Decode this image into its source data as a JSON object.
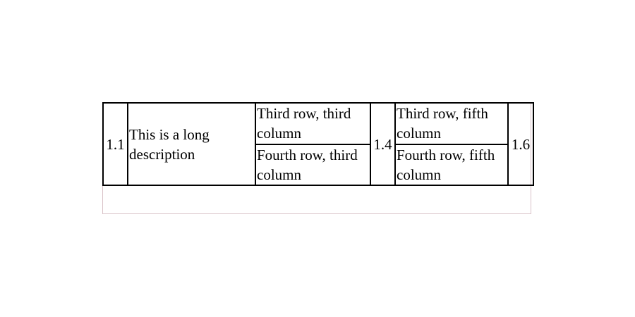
{
  "table": {
    "c1": "1.1",
    "c2": "This is a long description",
    "c3a": "Third row, third column",
    "c3b": "Fourth row, third column",
    "c4": "1.4",
    "c5a": "Third row, fifth column",
    "c5b": "Fourth row, fifth column",
    "c6": "1.6"
  }
}
